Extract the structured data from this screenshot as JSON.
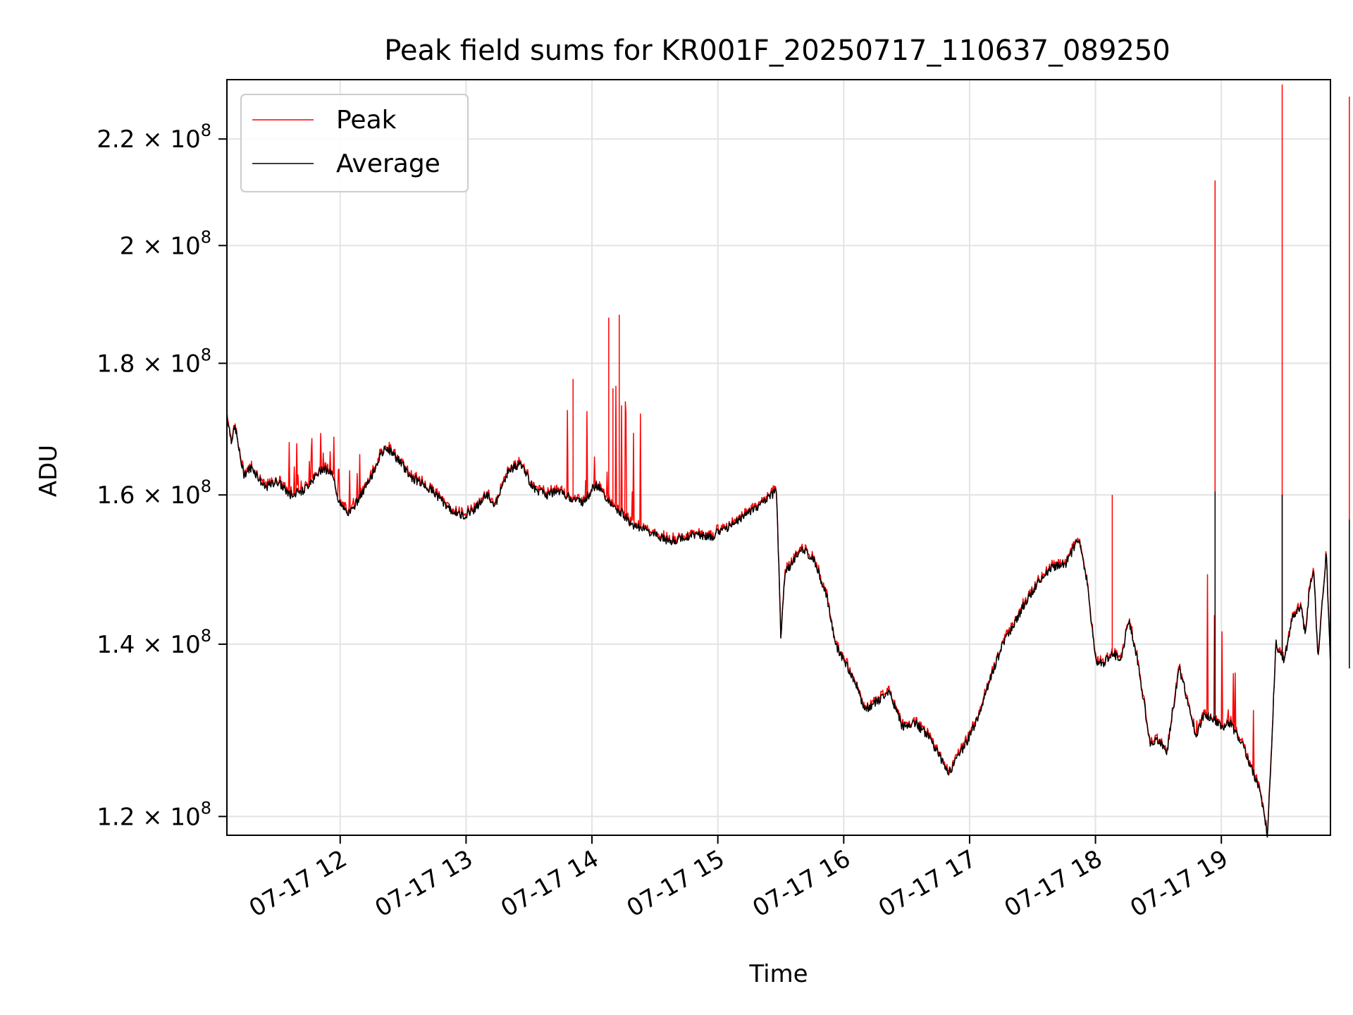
{
  "chart_data": {
    "type": "line",
    "title": "Peak field sums for KR001F_20250717_110637_089250",
    "xlabel": "Time",
    "ylabel": "ADU",
    "y_scale": "log",
    "grid": true,
    "legend_position": "top-left",
    "xlim": [
      "07-17 11:06",
      "07-17 19:52"
    ],
    "ylim": [
      118000000,
      232000000
    ],
    "x_ticks": [
      {
        "label": "07-17 12",
        "time": "07-17 12:00"
      },
      {
        "label": "07-17 13",
        "time": "07-17 13:00"
      },
      {
        "label": "07-17 14",
        "time": "07-17 14:00"
      },
      {
        "label": "07-17 15",
        "time": "07-17 15:00"
      },
      {
        "label": "07-17 16",
        "time": "07-17 16:00"
      },
      {
        "label": "07-17 17",
        "time": "07-17 17:00"
      },
      {
        "label": "07-17 18",
        "time": "07-17 18:00"
      },
      {
        "label": "07-17 19",
        "time": "07-17 19:00"
      }
    ],
    "y_ticks": [
      {
        "mantissa": "1.2",
        "value": 120000000
      },
      {
        "mantissa": "1.4",
        "value": 140000000
      },
      {
        "mantissa": "1.6",
        "value": 160000000
      },
      {
        "mantissa": "1.8",
        "value": 180000000
      },
      {
        "mantissa": "2",
        "value": 200000000
      },
      {
        "mantissa": "2.2",
        "value": 220000000
      }
    ],
    "y_tick_multiplier": "×",
    "y_tick_base": "10",
    "y_tick_exponent": "8",
    "series": [
      {
        "name": "Peak",
        "color": "#ff0000"
      },
      {
        "name": "Average",
        "color": "#000000"
      }
    ],
    "average_points": [
      [
        "07-17 11:06",
        172000000
      ],
      [
        "07-17 11:08",
        168000000
      ],
      [
        "07-17 11:10",
        170000000
      ],
      [
        "07-17 11:12",
        166000000
      ],
      [
        "07-17 11:14",
        163000000
      ],
      [
        "07-17 11:18",
        164000000
      ],
      [
        "07-17 11:24",
        161000000
      ],
      [
        "07-17 11:30",
        162000000
      ],
      [
        "07-17 11:36",
        160000000
      ],
      [
        "07-17 11:42",
        160500000
      ],
      [
        "07-17 11:48",
        162500000
      ],
      [
        "07-17 11:52",
        164000000
      ],
      [
        "07-17 11:56",
        163000000
      ],
      [
        "07-17 12:00",
        158500000
      ],
      [
        "07-17 12:04",
        157500000
      ],
      [
        "07-17 12:08",
        159000000
      ],
      [
        "07-17 12:14",
        162000000
      ],
      [
        "07-17 12:18",
        165000000
      ],
      [
        "07-17 12:22",
        167000000
      ],
      [
        "07-17 12:28",
        165000000
      ],
      [
        "07-17 12:34",
        162500000
      ],
      [
        "07-17 12:40",
        161500000
      ],
      [
        "07-17 12:46",
        160000000
      ],
      [
        "07-17 12:52",
        158000000
      ],
      [
        "07-17 12:58",
        157000000
      ],
      [
        "07-17 13:04",
        158000000
      ],
      [
        "07-17 13:10",
        160000000
      ],
      [
        "07-17 13:14",
        158500000
      ],
      [
        "07-17 13:20",
        163500000
      ],
      [
        "07-17 13:26",
        164500000
      ],
      [
        "07-17 13:32",
        161000000
      ],
      [
        "07-17 13:38",
        160000000
      ],
      [
        "07-17 13:44",
        160500000
      ],
      [
        "07-17 13:50",
        159500000
      ],
      [
        "07-17 13:56",
        159000000
      ],
      [
        "07-17 14:02",
        161500000
      ],
      [
        "07-17 14:08",
        159000000
      ],
      [
        "07-17 14:14",
        157500000
      ],
      [
        "07-17 14:20",
        155500000
      ],
      [
        "07-17 14:26",
        155000000
      ],
      [
        "07-17 14:32",
        154000000
      ],
      [
        "07-17 14:38",
        153500000
      ],
      [
        "07-17 14:44",
        154000000
      ],
      [
        "07-17 14:50",
        154500000
      ],
      [
        "07-17 14:56",
        154000000
      ],
      [
        "07-17 15:02",
        155000000
      ],
      [
        "07-17 15:08",
        156000000
      ],
      [
        "07-17 15:14",
        157500000
      ],
      [
        "07-17 15:20",
        158500000
      ],
      [
        "07-17 15:28",
        160500000
      ],
      [
        "07-17 15:30",
        141000000
      ],
      [
        "07-17 15:32",
        149000000
      ],
      [
        "07-17 15:36",
        151000000
      ],
      [
        "07-17 15:40",
        152500000
      ],
      [
        "07-17 15:46",
        151000000
      ],
      [
        "07-17 15:52",
        146000000
      ],
      [
        "07-17 15:56",
        140000000
      ],
      [
        "07-17 16:00",
        138000000
      ],
      [
        "07-17 16:06",
        135000000
      ],
      [
        "07-17 16:10",
        132000000
      ],
      [
        "07-17 16:16",
        133000000
      ],
      [
        "07-17 16:22",
        134000000
      ],
      [
        "07-17 16:28",
        130000000
      ],
      [
        "07-17 16:34",
        130500000
      ],
      [
        "07-17 16:40",
        129000000
      ],
      [
        "07-17 16:46",
        126500000
      ],
      [
        "07-17 16:50",
        124500000
      ],
      [
        "07-17 16:54",
        126500000
      ],
      [
        "07-17 16:58",
        128000000
      ],
      [
        "07-17 17:04",
        131000000
      ],
      [
        "07-17 17:10",
        136000000
      ],
      [
        "07-17 17:16",
        140000000
      ],
      [
        "07-17 17:22",
        143000000
      ],
      [
        "07-17 17:28",
        146000000
      ],
      [
        "07-17 17:34",
        148500000
      ],
      [
        "07-17 17:40",
        150000000
      ],
      [
        "07-17 17:46",
        150500000
      ],
      [
        "07-17 17:52",
        154000000
      ],
      [
        "07-17 17:56",
        148000000
      ],
      [
        "07-17 18:00",
        138000000
      ],
      [
        "07-17 18:04",
        137500000
      ],
      [
        "07-17 18:08",
        139000000
      ],
      [
        "07-17 18:12",
        138000000
      ],
      [
        "07-17 18:16",
        143000000
      ],
      [
        "07-17 18:20",
        138000000
      ],
      [
        "07-17 18:26",
        128000000
      ],
      [
        "07-17 18:30",
        128500000
      ],
      [
        "07-17 18:34",
        127000000
      ],
      [
        "07-17 18:40",
        137000000
      ],
      [
        "07-17 18:44",
        133000000
      ],
      [
        "07-17 18:48",
        129000000
      ],
      [
        "07-17 18:52",
        131500000
      ],
      [
        "07-17 18:56",
        131000000
      ],
      [
        "07-17 19:00",
        130000000
      ],
      [
        "07-17 19:04",
        130500000
      ],
      [
        "07-17 19:10",
        128000000
      ],
      [
        "07-17 19:14",
        125500000
      ],
      [
        "07-17 19:18",
        123000000
      ],
      [
        "07-17 19:22",
        118000000
      ],
      [
        "07-17 19:24",
        128000000
      ],
      [
        "07-17 19:26",
        140000000
      ],
      [
        "07-17 19:30",
        138000000
      ],
      [
        "07-17 19:34",
        143500000
      ],
      [
        "07-17 19:38",
        145000000
      ],
      [
        "07-17 19:40",
        141000000
      ],
      [
        "07-17 19:42",
        147000000
      ],
      [
        "07-17 19:44",
        150000000
      ],
      [
        "07-17 19:46",
        138000000
      ],
      [
        "07-17 19:50",
        152000000
      ],
      [
        "07-17 19:52",
        137000000
      ]
    ]
  }
}
